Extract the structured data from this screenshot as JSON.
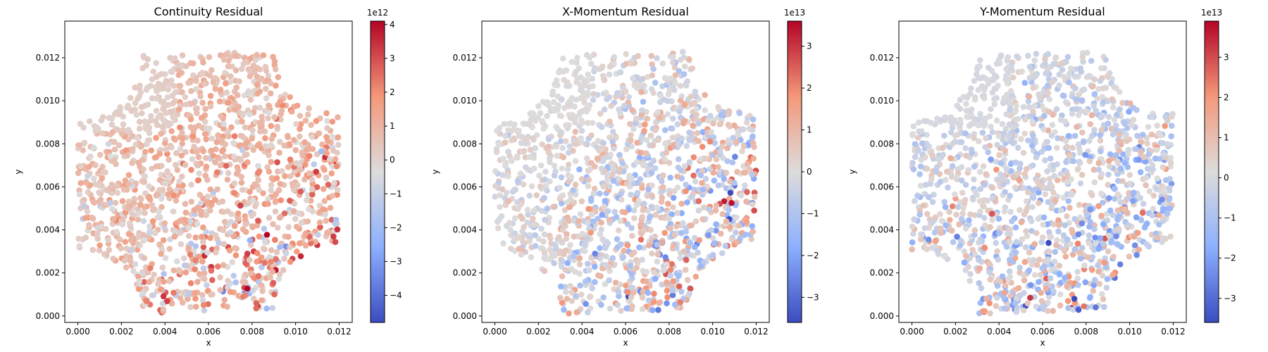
{
  "chart_data": [
    {
      "type": "scatter",
      "title": "Continuity Residual",
      "xlabel": "x",
      "ylabel": "y",
      "xlim": [
        -0.0006,
        0.0126
      ],
      "ylim": [
        -0.0003,
        0.0137
      ],
      "xticks": [
        0.0,
        0.002,
        0.004,
        0.006,
        0.008,
        0.01,
        0.012
      ],
      "xtick_labels": [
        "0.000",
        "0.002",
        "0.004",
        "0.006",
        "0.008",
        "0.010",
        "0.012"
      ],
      "yticks": [
        0.0,
        0.002,
        0.004,
        0.006,
        0.008,
        0.01,
        0.012
      ],
      "ytick_labels": [
        "0.000",
        "0.002",
        "0.004",
        "0.006",
        "0.008",
        "0.010",
        "0.012"
      ],
      "domain": {
        "cell_size": 0.012,
        "quarter_circle_radius": 0.003,
        "shear": 0.0004
      },
      "colorbar": {
        "colormap": "coolwarm",
        "range": [
          -4.8,
          4.1
        ],
        "ticks": [
          4,
          3,
          2,
          1,
          0,
          -1,
          -2,
          -3,
          -4
        ],
        "tick_labels": [
          "4",
          "3",
          "2",
          "1",
          "0",
          "−1",
          "−2",
          "−3",
          "−4"
        ],
        "scale_label": "1e12"
      }
    },
    {
      "type": "scatter",
      "title": "X-Momentum Residual",
      "xlabel": "x",
      "ylabel": "y",
      "xlim": [
        -0.0006,
        0.0126
      ],
      "ylim": [
        -0.0003,
        0.0137
      ],
      "xticks": [
        0.0,
        0.002,
        0.004,
        0.006,
        0.008,
        0.01,
        0.012
      ],
      "xtick_labels": [
        "0.000",
        "0.002",
        "0.004",
        "0.006",
        "0.008",
        "0.010",
        "0.012"
      ],
      "yticks": [
        0.0,
        0.002,
        0.004,
        0.006,
        0.008,
        0.01,
        0.012
      ],
      "ytick_labels": [
        "0.000",
        "0.002",
        "0.004",
        "0.006",
        "0.008",
        "0.010",
        "0.012"
      ],
      "domain": {
        "cell_size": 0.012,
        "quarter_circle_radius": 0.003,
        "shear": 0.0004
      },
      "colorbar": {
        "colormap": "coolwarm",
        "range": [
          -3.6,
          3.6
        ],
        "ticks": [
          3,
          2,
          1,
          0,
          -1,
          -2,
          -3
        ],
        "tick_labels": [
          "3",
          "2",
          "1",
          "0",
          "−1",
          "−2",
          "−3"
        ],
        "scale_label": "1e13"
      }
    },
    {
      "type": "scatter",
      "title": "Y-Momentum Residual",
      "xlabel": "x",
      "ylabel": "y",
      "xlim": [
        -0.0006,
        0.0126
      ],
      "ylim": [
        -0.0003,
        0.0137
      ],
      "xticks": [
        0.0,
        0.002,
        0.004,
        0.006,
        0.008,
        0.01,
        0.012
      ],
      "xtick_labels": [
        "0.000",
        "0.002",
        "0.004",
        "0.006",
        "0.008",
        "0.010",
        "0.012"
      ],
      "yticks": [
        0.0,
        0.002,
        0.004,
        0.006,
        0.008,
        0.01,
        0.012
      ],
      "ytick_labels": [
        "0.000",
        "0.002",
        "0.004",
        "0.006",
        "0.008",
        "0.010",
        "0.012"
      ],
      "domain": {
        "cell_size": 0.012,
        "quarter_circle_radius": 0.003,
        "shear": 0.0004
      },
      "colorbar": {
        "colormap": "coolwarm",
        "range": [
          -3.6,
          3.9
        ],
        "ticks": [
          3,
          2,
          1,
          0,
          -1,
          -2,
          -3
        ],
        "tick_labels": [
          "3",
          "2",
          "1",
          "0",
          "−1",
          "−2",
          "−3"
        ],
        "scale_label": "1e13"
      }
    }
  ]
}
